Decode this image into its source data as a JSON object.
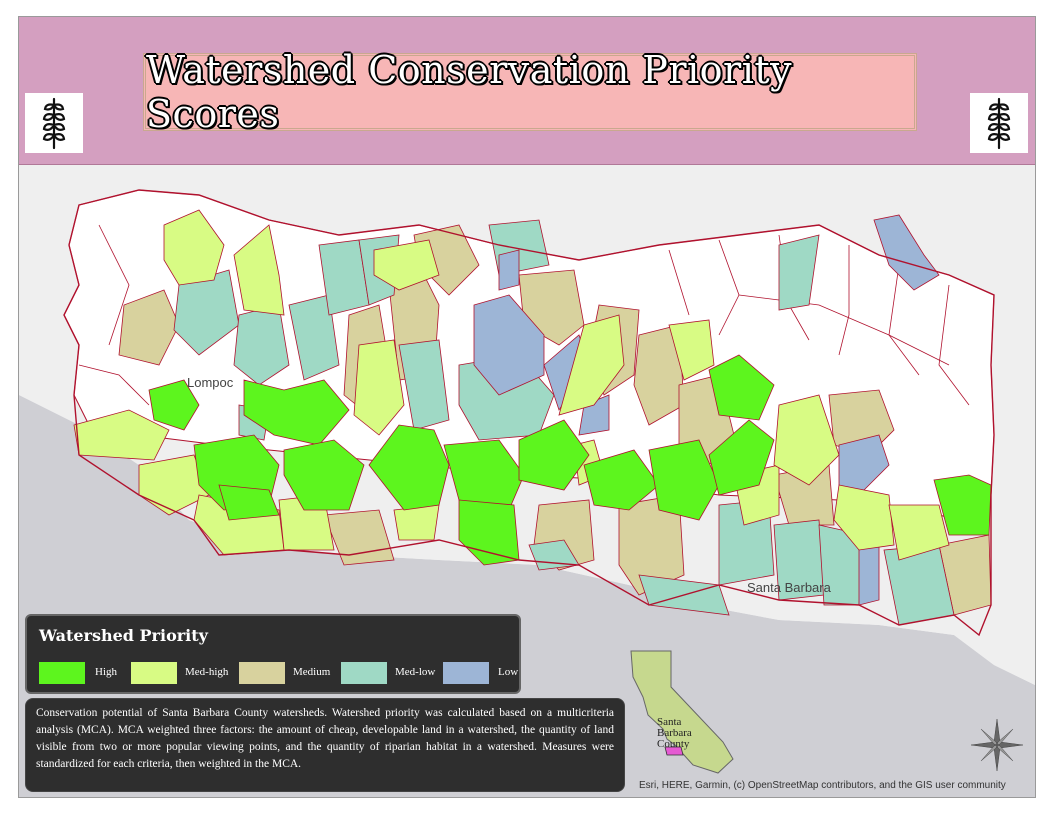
{
  "title": "Watershed Conservation Priority Scores",
  "legend": {
    "title": "Watershed Priority",
    "items": [
      {
        "label": "High",
        "color": "#5df51e"
      },
      {
        "label": "Med-high",
        "color": "#d8fb84"
      },
      {
        "label": "Medium",
        "color": "#d8d29e"
      },
      {
        "label": "Med-low",
        "color": "#9fd9c5"
      },
      {
        "label": "Low",
        "color": "#9db5d6"
      }
    ]
  },
  "description": "Conservation potential of Santa Barbara County watersheds. Watershed priority was calculated based on a multicriteria analysis (MCA). MCA weighted three factors: the amount of cheap, developable land in a watershed, the quantity of land visible from two or more popular viewing points, and the quantity of riparian habitat in a watershed. Measures were standardized for each criteria, then weighted in the MCA.",
  "credits": "Esri, HERE, Garmin, (c) OpenStreetMap contributors, and the GIS user community",
  "places": {
    "lompoc": "Lompoc",
    "santa_barbara": "Santa Barbara"
  },
  "inset": {
    "label_line1": "Santa",
    "label_line2": "Barbara",
    "label_line3": "County"
  },
  "icons": {
    "banner": "wheat-icon",
    "north": "compass-rose-icon"
  },
  "colors": {
    "banner": "#d49fc0",
    "title_box": "#f7b6b6",
    "outline": "#b0122e",
    "ocean": "#cfcfd4"
  }
}
